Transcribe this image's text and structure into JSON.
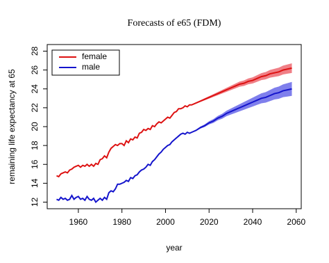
{
  "chart_data": {
    "type": "line",
    "title": "Forecasts of e65 (FDM)",
    "xlabel": "year",
    "ylabel": "remaining life expectancy at 65",
    "x": [
      1950,
      1951,
      1952,
      1953,
      1954,
      1955,
      1956,
      1957,
      1958,
      1959,
      1960,
      1961,
      1962,
      1963,
      1964,
      1965,
      1966,
      1967,
      1968,
      1969,
      1970,
      1971,
      1972,
      1973,
      1974,
      1975,
      1976,
      1977,
      1978,
      1979,
      1980,
      1981,
      1982,
      1983,
      1984,
      1985,
      1986,
      1987,
      1988,
      1989,
      1990,
      1991,
      1992,
      1993,
      1994,
      1995,
      1996,
      1997,
      1998,
      1999,
      2000,
      2001,
      2002,
      2003,
      2004,
      2005,
      2006,
      2007,
      2008,
      2009,
      2010,
      2011,
      2012,
      2014,
      2016,
      2018,
      2020,
      2022,
      2024,
      2026,
      2028,
      2030,
      2032,
      2034,
      2036,
      2038,
      2040,
      2042,
      2044,
      2046,
      2048,
      2050,
      2052,
      2054,
      2056,
      2058
    ],
    "series": [
      {
        "name": "female",
        "color": "#dd1111",
        "band_color": "#f07f86",
        "values": [
          14.8,
          14.7,
          15.0,
          15.1,
          15.2,
          15.1,
          15.4,
          15.5,
          15.7,
          15.8,
          15.9,
          15.7,
          15.9,
          15.8,
          16.0,
          15.8,
          16.0,
          15.8,
          16.1,
          16.0,
          16.5,
          16.6,
          16.9,
          16.7,
          17.3,
          17.7,
          17.9,
          18.1,
          18.0,
          18.2,
          18.2,
          18.0,
          18.5,
          18.3,
          18.7,
          18.6,
          18.9,
          18.8,
          19.3,
          19.4,
          19.7,
          19.6,
          19.8,
          19.7,
          20.1,
          20.0,
          20.3,
          20.5,
          20.4,
          20.6,
          20.8,
          21.0,
          20.9,
          21.2,
          21.5,
          21.6,
          21.9,
          21.9,
          22.0,
          22.2,
          22.1,
          22.3,
          22.3,
          22.5,
          22.7,
          22.9,
          23.1,
          23.3,
          23.5,
          23.7,
          23.9,
          24.1,
          24.3,
          24.5,
          24.6,
          24.8,
          24.9,
          25.1,
          25.3,
          25.4,
          25.6,
          25.7,
          25.8,
          26.0,
          26.1,
          26.2
        ],
        "lower": [
          null,
          null,
          null,
          null,
          null,
          null,
          null,
          null,
          null,
          null,
          null,
          null,
          null,
          null,
          null,
          null,
          null,
          null,
          null,
          null,
          null,
          null,
          null,
          null,
          null,
          null,
          null,
          null,
          null,
          null,
          null,
          null,
          null,
          null,
          null,
          null,
          null,
          null,
          null,
          null,
          null,
          null,
          null,
          null,
          null,
          null,
          null,
          null,
          null,
          null,
          null,
          null,
          null,
          null,
          null,
          null,
          null,
          null,
          null,
          null,
          null,
          null,
          22.25,
          22.43,
          22.61,
          22.79,
          22.97,
          23.15,
          23.33,
          23.51,
          23.69,
          23.87,
          24.05,
          24.23,
          24.31,
          24.49,
          24.57,
          24.75,
          24.93,
          25.01,
          25.19,
          25.27,
          25.35,
          25.53,
          25.61,
          25.69
        ],
        "upper": [
          null,
          null,
          null,
          null,
          null,
          null,
          null,
          null,
          null,
          null,
          null,
          null,
          null,
          null,
          null,
          null,
          null,
          null,
          null,
          null,
          null,
          null,
          null,
          null,
          null,
          null,
          null,
          null,
          null,
          null,
          null,
          null,
          null,
          null,
          null,
          null,
          null,
          null,
          null,
          null,
          null,
          null,
          null,
          null,
          null,
          null,
          null,
          null,
          null,
          null,
          null,
          null,
          null,
          null,
          null,
          null,
          null,
          null,
          null,
          null,
          null,
          null,
          22.35,
          22.57,
          22.79,
          23.01,
          23.23,
          23.45,
          23.67,
          23.89,
          24.11,
          24.33,
          24.55,
          24.77,
          24.89,
          25.11,
          25.23,
          25.45,
          25.67,
          25.79,
          26.01,
          26.13,
          26.25,
          26.47,
          26.59,
          26.71
        ]
      },
      {
        "name": "male",
        "color": "#1414cc",
        "band_color": "#7f7fec",
        "values": [
          12.3,
          12.2,
          12.5,
          12.3,
          12.4,
          12.2,
          12.3,
          12.7,
          12.3,
          12.5,
          12.6,
          12.3,
          12.4,
          12.2,
          12.6,
          12.3,
          12.2,
          12.4,
          12.0,
          12.2,
          12.4,
          12.2,
          12.5,
          12.3,
          13.0,
          13.2,
          13.1,
          13.4,
          13.9,
          13.9,
          14.0,
          14.1,
          14.3,
          14.2,
          14.6,
          14.5,
          14.8,
          14.9,
          15.2,
          15.4,
          15.5,
          15.7,
          16.0,
          15.9,
          16.3,
          16.5,
          16.8,
          17.1,
          17.3,
          17.6,
          17.8,
          18.0,
          18.1,
          18.4,
          18.6,
          18.8,
          19.0,
          19.2,
          19.3,
          19.2,
          19.4,
          19.3,
          19.4,
          19.6,
          19.9,
          20.1,
          20.4,
          20.6,
          20.9,
          21.1,
          21.4,
          21.6,
          21.8,
          22.0,
          22.2,
          22.4,
          22.6,
          22.8,
          23.0,
          23.1,
          23.3,
          23.5,
          23.6,
          23.8,
          23.9,
          24.0
        ],
        "lower": [
          null,
          null,
          null,
          null,
          null,
          null,
          null,
          null,
          null,
          null,
          null,
          null,
          null,
          null,
          null,
          null,
          null,
          null,
          null,
          null,
          null,
          null,
          null,
          null,
          null,
          null,
          null,
          null,
          null,
          null,
          null,
          null,
          null,
          null,
          null,
          null,
          null,
          null,
          null,
          null,
          null,
          null,
          null,
          null,
          null,
          null,
          null,
          null,
          null,
          null,
          null,
          null,
          null,
          null,
          null,
          null,
          null,
          null,
          null,
          null,
          null,
          null,
          19.35,
          19.52,
          19.79,
          19.96,
          20.23,
          20.4,
          20.67,
          20.84,
          21.11,
          21.28,
          21.45,
          21.62,
          21.79,
          21.96,
          22.13,
          22.3,
          22.47,
          22.54,
          22.71,
          22.88,
          22.95,
          23.12,
          23.19,
          23.26
        ],
        "upper": [
          null,
          null,
          null,
          null,
          null,
          null,
          null,
          null,
          null,
          null,
          null,
          null,
          null,
          null,
          null,
          null,
          null,
          null,
          null,
          null,
          null,
          null,
          null,
          null,
          null,
          null,
          null,
          null,
          null,
          null,
          null,
          null,
          null,
          null,
          null,
          null,
          null,
          null,
          null,
          null,
          null,
          null,
          null,
          null,
          null,
          null,
          null,
          null,
          null,
          null,
          null,
          null,
          null,
          null,
          null,
          null,
          null,
          null,
          null,
          null,
          null,
          null,
          19.45,
          19.68,
          20.01,
          20.24,
          20.57,
          20.8,
          21.13,
          21.36,
          21.69,
          21.92,
          22.15,
          22.38,
          22.61,
          22.84,
          23.07,
          23.3,
          23.53,
          23.66,
          23.89,
          24.12,
          24.25,
          24.48,
          24.61,
          24.74
        ]
      }
    ],
    "xlim": [
      1945.7,
      2062.3
    ],
    "xticks": [
      1960,
      1980,
      2000,
      2020,
      2040,
      2060
    ],
    "ylim": [
      11.3,
      28.7
    ],
    "yticks": [
      12,
      14,
      16,
      18,
      20,
      22,
      24,
      26,
      28
    ],
    "legend": "topleft"
  }
}
